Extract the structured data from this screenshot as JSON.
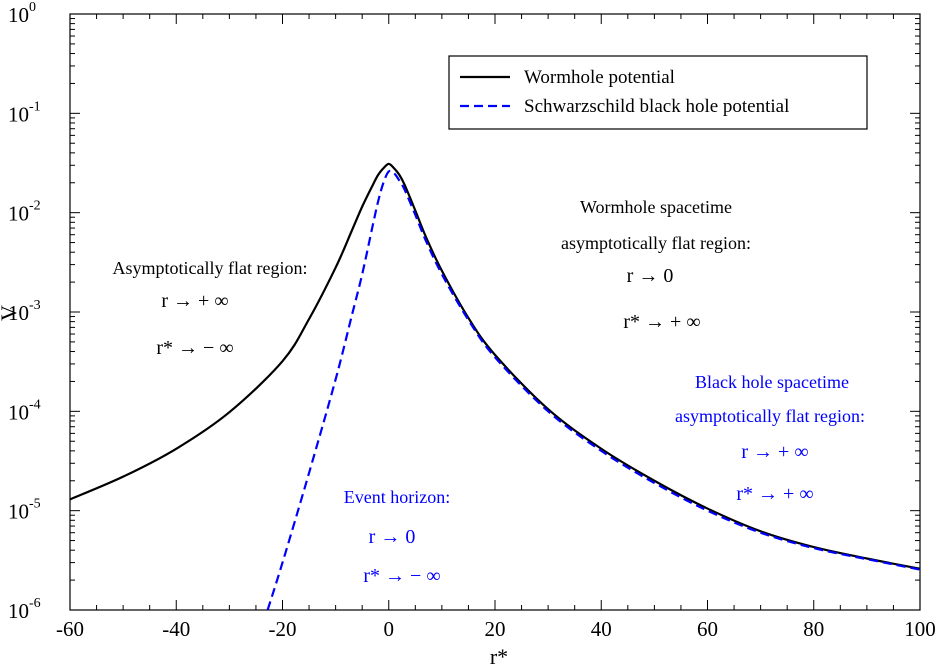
{
  "chart_data": {
    "type": "line",
    "xlabel": "r*",
    "ylabel": "V",
    "xlim": [
      -60,
      100
    ],
    "ylim": [
      1e-06,
      1
    ],
    "yscale": "log",
    "x_ticks": [
      "-60",
      "-40",
      "-20",
      "0",
      "20",
      "40",
      "60",
      "80",
      "100"
    ],
    "y_ticks": [
      {
        "base": "10",
        "exp": "-6"
      },
      {
        "base": "10",
        "exp": "-5"
      },
      {
        "base": "10",
        "exp": "-4"
      },
      {
        "base": "10",
        "exp": "-3"
      },
      {
        "base": "10",
        "exp": "-2"
      },
      {
        "base": "10",
        "exp": "-1"
      },
      {
        "base": "10",
        "exp": "0"
      }
    ],
    "grid": false,
    "legend_position": "top-right",
    "series": [
      {
        "name": "Wormhole potential",
        "color": "#000000",
        "style": "solid",
        "x": [
          -60,
          -50,
          -40,
          -30,
          -20,
          -15,
          -10,
          -7,
          -5,
          -3,
          -2,
          -1,
          0,
          1,
          2,
          3,
          5,
          7,
          10,
          15,
          20,
          30,
          40,
          50,
          60,
          70,
          80,
          90,
          100
        ],
        "y": [
          1.3e-05,
          2.2e-05,
          4.2e-05,
          9.8e-05,
          0.00032,
          0.00085,
          0.0028,
          0.0065,
          0.0115,
          0.019,
          0.024,
          0.028,
          0.031,
          0.028,
          0.024,
          0.019,
          0.0105,
          0.0057,
          0.0026,
          0.00087,
          0.00037,
          0.000105,
          4.2e-05,
          2e-05,
          1.05e-05,
          6.2e-06,
          4.3e-06,
          3.3e-06,
          2.6e-06
        ]
      },
      {
        "name": "Schwarzschild black hole potential",
        "color": "#0000ff",
        "style": "dashed",
        "x": [
          -22.8,
          -20,
          -15,
          -10,
          -7,
          -5,
          -3,
          -2,
          -1,
          0,
          1,
          2,
          3,
          5,
          7,
          10,
          15,
          20,
          30,
          40,
          50,
          60,
          70,
          80,
          90,
          100
        ],
        "y": [
          1e-06,
          3e-06,
          2.4e-05,
          0.00021,
          0.0009,
          0.0024,
          0.0075,
          0.013,
          0.02,
          0.026,
          0.025,
          0.021,
          0.017,
          0.0095,
          0.0052,
          0.0024,
          0.00083,
          0.00035,
          0.0001,
          4e-05,
          1.9e-05,
          1e-05,
          6e-06,
          4.2e-06,
          3.25e-06,
          2.55e-06
        ]
      }
    ],
    "annotations": [
      {
        "id": "left-title",
        "text": "Asymptotically flat region:",
        "color": "#000000"
      },
      {
        "id": "left-r",
        "text": "r → + ∞",
        "color": "#000000"
      },
      {
        "id": "left-rstar",
        "text": "r* → − ∞",
        "color": "#000000"
      },
      {
        "id": "wh-title1",
        "text": "Wormhole spacetime",
        "color": "#000000"
      },
      {
        "id": "wh-title2",
        "text": "asymptotically flat region:",
        "color": "#000000"
      },
      {
        "id": "wh-r",
        "text": "r → 0",
        "color": "#000000"
      },
      {
        "id": "wh-rstar",
        "text": "r* → + ∞",
        "color": "#000000"
      },
      {
        "id": "bh-title1",
        "text": "Black hole spacetime",
        "color": "#0000ff"
      },
      {
        "id": "bh-title2",
        "text": "asymptotically flat region:",
        "color": "#0000ff"
      },
      {
        "id": "bh-r",
        "text": "r → + ∞",
        "color": "#0000ff"
      },
      {
        "id": "bh-rstar",
        "text": "r* → + ∞",
        "color": "#0000ff"
      },
      {
        "id": "eh-title",
        "text": "Event horizon:",
        "color": "#0000ff"
      },
      {
        "id": "eh-r",
        "text": "r → 0",
        "color": "#0000ff"
      },
      {
        "id": "eh-rstar",
        "text": "r* → − ∞",
        "color": "#0000ff"
      }
    ]
  }
}
